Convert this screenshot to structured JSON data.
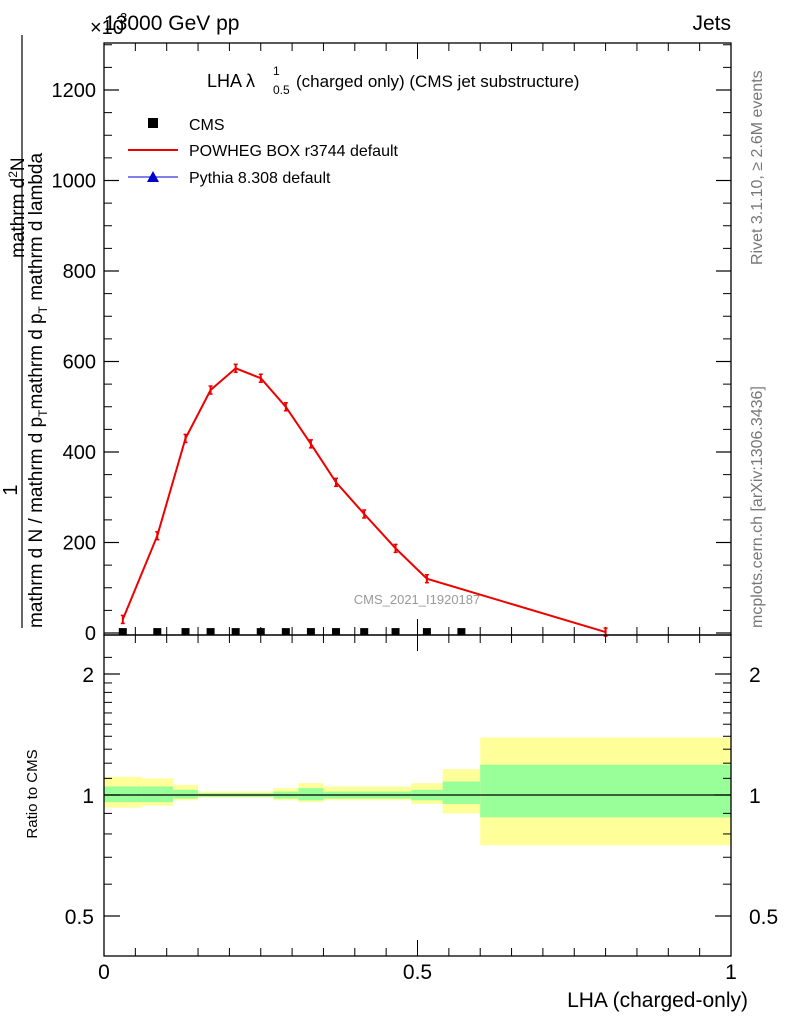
{
  "header": {
    "left": "13000 GeV pp",
    "right": "Jets",
    "exponent": "×10",
    "exponent_power": "3"
  },
  "side_labels": {
    "rivet": "Rivet 3.1.10, ≥ 2.6M events",
    "mcplots": "mcplots.cern.ch [arXiv:1306.3436]"
  },
  "watermark": "CMS_2021_I1920187",
  "plot_title": {
    "main": "LHA λ",
    "sup": "1",
    "sub": "0.5",
    "rest": " (charged only) (CMS jet substructure)"
  },
  "ylabel_top": {
    "numerator": "1",
    "denominator_line1": "mathrm d N / mathrm d p",
    "sub_T": "T",
    "denominator_line2": " mathrm d p",
    "rest": " mathrm d lambda",
    "right_num": "mathrm d",
    "right_num2": "N",
    "full_right_den": "mathrm d p",
    "full_right_den2": " mathrm d lambda"
  },
  "ylabel_top_text": {
    "num": "1",
    "den_a": "mathrm d N / mathrm d p",
    "den_b": "mathrm d p",
    "den_c": " mathrm d lambda",
    "num2": "mathrm d",
    "num2b": "N",
    "sub_T": "T",
    "sup_2": "2"
  },
  "ylabel_bottom": "Ratio to CMS",
  "xlabel": "LHA (charged-only)",
  "legend": [
    {
      "label": "CMS",
      "color": "#000000",
      "marker": "square"
    },
    {
      "label": "POWHEG BOX r3744 default",
      "color": "#ee0000",
      "marker": "line"
    },
    {
      "label": "Pythia 8.308 default",
      "color": "#0000cc",
      "marker": "triangle"
    }
  ],
  "chart_data": [
    {
      "type": "line",
      "panel": "main",
      "y_scale_note": "values in units of 10^3",
      "xlim": [
        0,
        1
      ],
      "ylim": [
        0,
        1200
      ],
      "yticks": [
        0,
        200,
        400,
        600,
        800,
        1000,
        1200
      ],
      "ytick_labels": [
        "0",
        "200",
        "400",
        "600",
        "800",
        "1000",
        "1200"
      ],
      "cms": {
        "name": "CMS",
        "x": [
          0.03,
          0.085,
          0.13,
          0.17,
          0.21,
          0.25,
          0.29,
          0.33,
          0.37,
          0.415,
          0.465,
          0.515,
          0.57
        ],
        "y": [
          2,
          2,
          2,
          2,
          2,
          2,
          2,
          2,
          2,
          2,
          2,
          2,
          2
        ]
      },
      "series": [
        {
          "name": "POWHEG BOX r3744 default",
          "color": "#ee0000",
          "x": [
            0.03,
            0.085,
            0.13,
            0.17,
            0.21,
            0.25,
            0.29,
            0.33,
            0.37,
            0.415,
            0.465,
            0.515,
            0.8
          ],
          "y": [
            30,
            215,
            430,
            537,
            585,
            563,
            500,
            418,
            333,
            263,
            187,
            120,
            2
          ]
        },
        {
          "name": "Pythia 8.308 default",
          "color": "#0000cc",
          "x": [],
          "y": []
        }
      ]
    },
    {
      "type": "area",
      "panel": "ratio",
      "ylabel": "Ratio to CMS",
      "ylim": [
        0.4,
        2.3
      ],
      "y_scale": "log",
      "yticks": [
        0.5,
        1,
        2
      ],
      "ytick_labels": [
        "0.5",
        "1",
        "2"
      ],
      "xticks": [
        0,
        0.5,
        1
      ],
      "xtick_labels": [
        "0",
        "0.5",
        "1"
      ],
      "bins": [
        {
          "x0": 0.0,
          "x1": 0.06,
          "inner": [
            0.96,
            1.05
          ],
          "outer": [
            0.93,
            1.11
          ]
        },
        {
          "x0": 0.06,
          "x1": 0.11,
          "inner": [
            0.96,
            1.05
          ],
          "outer": [
            0.94,
            1.1
          ]
        },
        {
          "x0": 0.11,
          "x1": 0.15,
          "inner": [
            0.98,
            1.03
          ],
          "outer": [
            0.97,
            1.06
          ]
        },
        {
          "x0": 0.15,
          "x1": 0.27,
          "inner": [
            0.99,
            1.01
          ],
          "outer": [
            0.985,
            1.02
          ]
        },
        {
          "x0": 0.27,
          "x1": 0.31,
          "inner": [
            0.98,
            1.02
          ],
          "outer": [
            0.97,
            1.04
          ]
        },
        {
          "x0": 0.31,
          "x1": 0.35,
          "inner": [
            0.97,
            1.04
          ],
          "outer": [
            0.96,
            1.07
          ]
        },
        {
          "x0": 0.35,
          "x1": 0.49,
          "inner": [
            0.98,
            1.02
          ],
          "outer": [
            0.97,
            1.05
          ]
        },
        {
          "x0": 0.49,
          "x1": 0.54,
          "inner": [
            0.97,
            1.03
          ],
          "outer": [
            0.95,
            1.07
          ]
        },
        {
          "x0": 0.54,
          "x1": 0.6,
          "inner": [
            0.95,
            1.08
          ],
          "outer": [
            0.9,
            1.16
          ]
        },
        {
          "x0": 0.6,
          "x1": 1.0,
          "inner": [
            0.88,
            1.19
          ],
          "outer": [
            0.75,
            1.39
          ]
        }
      ],
      "reference": 1.0
    }
  ],
  "colors": {
    "band_inner": "#99ff99",
    "band_outer": "#ffff99",
    "powheg": "#ee0000",
    "pythia": "#0000cc",
    "watermark": "#999999",
    "side_text": "#777777"
  }
}
